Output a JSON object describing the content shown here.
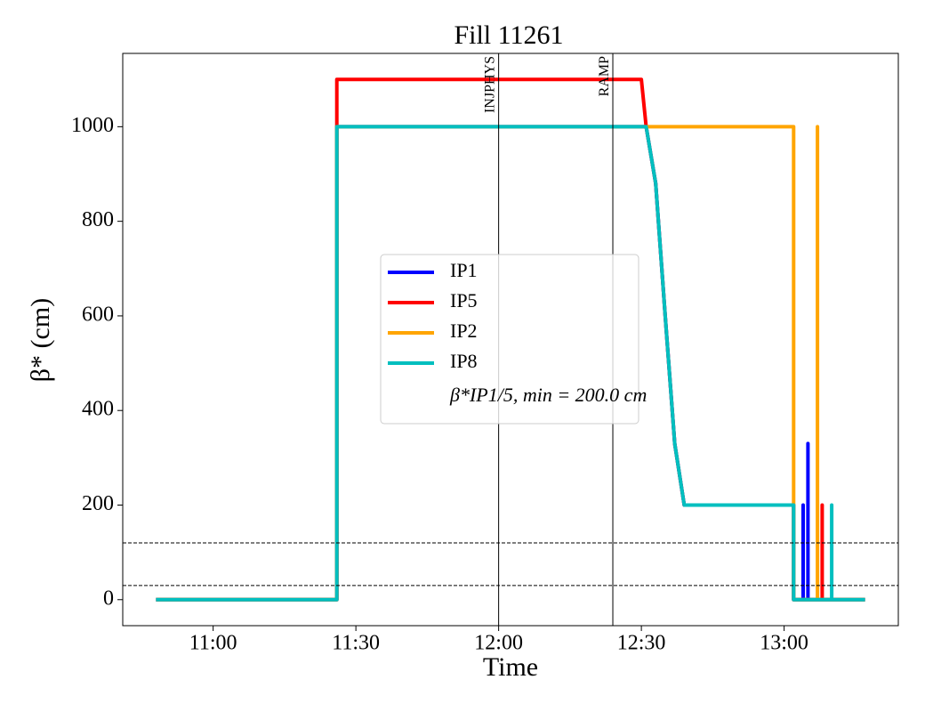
{
  "chart_data": {
    "type": "line",
    "title": "Fill 11261",
    "x_label": "Time",
    "y_label": "β* (cm)",
    "xlim": [
      "10:41",
      "13:24"
    ],
    "xticks": [
      "11:00",
      "11:30",
      "12:00",
      "12:30",
      "13:00"
    ],
    "ylim": [
      -55,
      1155
    ],
    "yticks": [
      0,
      200,
      400,
      600,
      800,
      1000
    ],
    "legend": "center",
    "legend_note": "β*IP1/5, min = 200.0 cm",
    "vlines": [
      {
        "x": "12:00",
        "label": "INJPHYS"
      },
      {
        "x": "12:24",
        "label": "RAMP"
      }
    ],
    "hlines": [
      30,
      120
    ],
    "series": [
      {
        "name": "IP1",
        "color": "#0000ff",
        "x": [
          "10:48",
          "11:26",
          "11:26",
          "12:31",
          "12:33",
          "12:35",
          "12:37",
          "12:39",
          "13:02",
          "13:02",
          "13:04",
          "13:04",
          "13:04",
          "13:05",
          "13:05",
          "13:05",
          "13:17"
        ],
        "values": [
          0,
          0,
          1000,
          1000,
          880,
          600,
          330,
          200,
          200,
          0,
          0,
          200,
          0,
          0,
          330,
          0,
          0
        ]
      },
      {
        "name": "IP5",
        "color": "#ff0000",
        "x": [
          "10:48",
          "11:26",
          "11:26",
          "12:30",
          "12:31",
          "12:33",
          "12:35",
          "12:37",
          "12:39",
          "13:02",
          "13:02",
          "13:08",
          "13:08",
          "13:08",
          "13:17"
        ],
        "values": [
          0,
          0,
          1100,
          1100,
          1000,
          880,
          600,
          330,
          200,
          200,
          0,
          0,
          200,
          0,
          0
        ]
      },
      {
        "name": "IP2",
        "color": "#ffa500",
        "x": [
          "10:48",
          "11:26",
          "11:26",
          "13:02",
          "13:02",
          "13:07",
          "13:07",
          "13:07",
          "13:17"
        ],
        "values": [
          0,
          0,
          1000,
          1000,
          0,
          0,
          1000,
          0,
          0
        ]
      },
      {
        "name": "IP8",
        "color": "#00bfbf",
        "x": [
          "10:48",
          "11:26",
          "11:26",
          "12:31",
          "12:33",
          "12:35",
          "12:37",
          "12:39",
          "13:02",
          "13:02",
          "13:10",
          "13:10",
          "13:10",
          "13:17"
        ],
        "values": [
          0,
          0,
          1000,
          1000,
          880,
          600,
          330,
          200,
          200,
          0,
          0,
          200,
          0,
          0
        ]
      }
    ]
  }
}
